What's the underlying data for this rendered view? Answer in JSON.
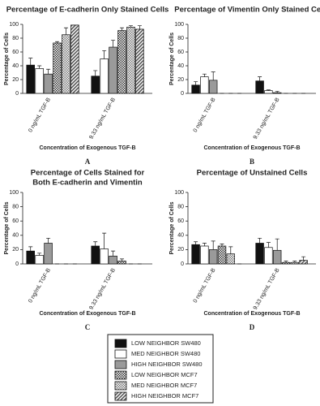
{
  "chart_data": [
    {
      "type": "bar",
      "panel_label": "A",
      "title": [
        "Percentage of E-cadherin Only Stained Cells"
      ],
      "y_label": "Percentage of Cells",
      "x_label": "Concentration of Exogenous TGF-B",
      "categories": [
        "0 ng/mL TGF-B",
        "9.33 ng/mL TGF-B"
      ],
      "ylim": [
        0,
        100
      ],
      "yticks": [
        0,
        20,
        40,
        60,
        80,
        100
      ],
      "series": [
        {
          "name": "LOW NEIGHBOR SW480",
          "color": "#111111",
          "pattern": "solid",
          "values": [
            41,
            25
          ],
          "errors": [
            10,
            8
          ]
        },
        {
          "name": "MED NEIGHBOR SW480",
          "color": "#ffffff",
          "pattern": "solid",
          "values": [
            36,
            50
          ],
          "errors": [
            4,
            12
          ]
        },
        {
          "name": "HIGH NEIGHBOR SW480",
          "color": "#9a9a9a",
          "pattern": "solid",
          "values": [
            28,
            67
          ],
          "errors": [
            7,
            10
          ]
        },
        {
          "name": "LOW NEIGHBOR MCF7",
          "color": "#333333",
          "pattern": "checker",
          "values": [
            73,
            91
          ],
          "errors": [
            2,
            4
          ]
        },
        {
          "name": "MED NEIGHBOR MCF7",
          "color": "#777777",
          "pattern": "checker",
          "values": [
            85,
            96
          ],
          "errors": [
            10,
            2
          ]
        },
        {
          "name": "HIGH NEIGHBOR MCF7",
          "color": "#555555",
          "pattern": "hatch",
          "values": [
            99,
            93
          ],
          "errors": [
            0,
            5
          ]
        }
      ]
    },
    {
      "type": "bar",
      "panel_label": "B",
      "title": [
        "Percentage of Vimentin Only Stained Cells"
      ],
      "y_label": "Percentage of Cells",
      "x_label": "Concentration of Exogenous TGF-B",
      "categories": [
        "0 ng/mL TGF-B",
        "9.33 ng/mL TGF-B"
      ],
      "ylim": [
        0,
        100
      ],
      "yticks": [
        0,
        20,
        40,
        60,
        80,
        100
      ],
      "series": [
        {
          "name": "LOW NEIGHBOR SW480",
          "color": "#111111",
          "pattern": "solid",
          "values": [
            12,
            18
          ],
          "errors": [
            5,
            6
          ]
        },
        {
          "name": "MED NEIGHBOR SW480",
          "color": "#ffffff",
          "pattern": "solid",
          "values": [
            24,
            4
          ],
          "errors": [
            4,
            1
          ]
        },
        {
          "name": "HIGH NEIGHBOR SW480",
          "color": "#9a9a9a",
          "pattern": "solid",
          "values": [
            19,
            1
          ],
          "errors": [
            12,
            2
          ]
        },
        {
          "name": "LOW NEIGHBOR MCF7",
          "color": "#333333",
          "pattern": "checker",
          "values": [
            0,
            0
          ],
          "errors": [
            0,
            0
          ]
        },
        {
          "name": "MED NEIGHBOR MCF7",
          "color": "#777777",
          "pattern": "checker",
          "values": [
            0,
            0
          ],
          "errors": [
            0,
            0
          ]
        },
        {
          "name": "HIGH NEIGHBOR MCF7",
          "color": "#555555",
          "pattern": "hatch",
          "values": [
            0,
            0
          ],
          "errors": [
            0,
            0
          ]
        }
      ]
    },
    {
      "type": "bar",
      "panel_label": "C",
      "title": [
        "Percentage of Cells Stained for",
        "Both E-cadherin and Vimentin"
      ],
      "y_label": "Percentage of Cells",
      "x_label": "Concentration of Exogenous TGF-B",
      "categories": [
        "0 ng/mL TGF-B",
        "9.33 ng/mL TGF-B"
      ],
      "ylim": [
        0,
        100
      ],
      "yticks": [
        0,
        20,
        40,
        60,
        80,
        100
      ],
      "series": [
        {
          "name": "LOW NEIGHBOR SW480",
          "color": "#111111",
          "pattern": "solid",
          "values": [
            18,
            25
          ],
          "errors": [
            6,
            6
          ]
        },
        {
          "name": "MED NEIGHBOR SW480",
          "color": "#ffffff",
          "pattern": "solid",
          "values": [
            12,
            21
          ],
          "errors": [
            3,
            22
          ]
        },
        {
          "name": "HIGH NEIGHBOR SW480",
          "color": "#9a9a9a",
          "pattern": "solid",
          "values": [
            29,
            11
          ],
          "errors": [
            7,
            7
          ]
        },
        {
          "name": "LOW NEIGHBOR MCF7",
          "color": "#333333",
          "pattern": "checker",
          "values": [
            0,
            4
          ],
          "errors": [
            0,
            3
          ]
        },
        {
          "name": "MED NEIGHBOR MCF7",
          "color": "#777777",
          "pattern": "checker",
          "values": [
            0,
            0
          ],
          "errors": [
            0,
            0
          ]
        },
        {
          "name": "HIGH NEIGHBOR MCF7",
          "color": "#555555",
          "pattern": "hatch",
          "values": [
            0,
            0
          ],
          "errors": [
            0,
            0
          ]
        }
      ]
    },
    {
      "type": "bar",
      "panel_label": "D",
      "title": [
        "Percentage of Unstained Cells"
      ],
      "y_label": "Percentage of Cells",
      "x_label": "Concentration of Exogenous TGF-B",
      "categories": [
        "0 ng/mL TGF-B",
        "9.33 ng/mL TGF-B"
      ],
      "ylim": [
        0,
        100
      ],
      "yticks": [
        0,
        20,
        40,
        60,
        80,
        100
      ],
      "series": [
        {
          "name": "LOW NEIGHBOR SW480",
          "color": "#111111",
          "pattern": "solid",
          "values": [
            27,
            29
          ],
          "errors": [
            4,
            7
          ]
        },
        {
          "name": "MED NEIGHBOR SW480",
          "color": "#ffffff",
          "pattern": "solid",
          "values": [
            25,
            23
          ],
          "errors": [
            4,
            7
          ]
        },
        {
          "name": "HIGH NEIGHBOR SW480",
          "color": "#9a9a9a",
          "pattern": "solid",
          "values": [
            20,
            19
          ],
          "errors": [
            12,
            16
          ]
        },
        {
          "name": "LOW NEIGHBOR MCF7",
          "color": "#333333",
          "pattern": "checker",
          "values": [
            25,
            2
          ],
          "errors": [
            3,
            2
          ]
        },
        {
          "name": "MED NEIGHBOR MCF7",
          "color": "#777777",
          "pattern": "checker",
          "values": [
            14,
            2
          ],
          "errors": [
            10,
            2
          ]
        },
        {
          "name": "HIGH NEIGHBOR MCF7",
          "color": "#555555",
          "pattern": "hatch",
          "values": [
            0,
            5
          ],
          "errors": [
            0,
            5
          ]
        }
      ]
    }
  ]
}
